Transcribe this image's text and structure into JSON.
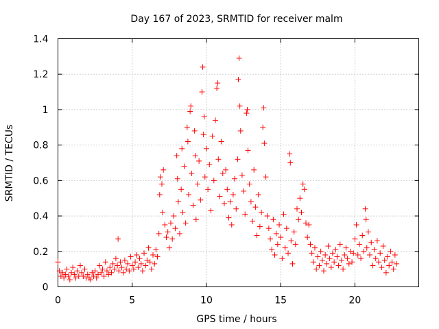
{
  "chart_data": {
    "type": "scatter",
    "title": "Day 167 of 2023, SRMTID for receiver malm",
    "xlabel": "GPS time / hours",
    "ylabel": "SRMTID / TECUs",
    "xlim": [
      0,
      24.3
    ],
    "ylim": [
      0,
      1.4
    ],
    "xticks": [
      0,
      5,
      10,
      15,
      20
    ],
    "xtick_labels": [
      "0",
      "5",
      "10",
      "15",
      "20"
    ],
    "yticks": [
      0,
      0.2,
      0.4,
      0.6,
      0.8,
      1.0,
      1.2,
      1.4
    ],
    "ytick_labels": [
      "0",
      "0.2",
      "0.4",
      "0.6",
      "0.8",
      "1",
      "1.2",
      "1.4"
    ],
    "grid": true,
    "marker": "plus",
    "color": "#ff0000",
    "series": [
      {
        "name": "SRMTID",
        "points": [
          [
            0.0,
            0.14
          ],
          [
            0.1,
            0.09
          ],
          [
            0.2,
            0.06
          ],
          [
            0.3,
            0.08
          ],
          [
            0.4,
            0.05
          ],
          [
            0.5,
            0.07
          ],
          [
            0.6,
            0.1
          ],
          [
            0.7,
            0.06
          ],
          [
            0.8,
            0.04
          ],
          [
            0.9,
            0.08
          ],
          [
            1.0,
            0.11
          ],
          [
            1.1,
            0.07
          ],
          [
            1.2,
            0.05
          ],
          [
            1.3,
            0.09
          ],
          [
            1.4,
            0.06
          ],
          [
            1.5,
            0.12
          ],
          [
            1.6,
            0.08
          ],
          [
            1.7,
            0.06
          ],
          [
            1.8,
            0.1
          ],
          [
            1.9,
            0.05
          ],
          [
            2.0,
            0.07
          ],
          [
            2.1,
            0.05
          ],
          [
            2.2,
            0.04
          ],
          [
            2.3,
            0.08
          ],
          [
            2.4,
            0.06
          ],
          [
            2.5,
            0.09
          ],
          [
            2.6,
            0.05
          ],
          [
            2.7,
            0.07
          ],
          [
            2.8,
            0.12
          ],
          [
            2.9,
            0.08
          ],
          [
            3.0,
            0.1
          ],
          [
            3.1,
            0.06
          ],
          [
            3.2,
            0.14
          ],
          [
            3.3,
            0.09
          ],
          [
            3.4,
            0.07
          ],
          [
            3.5,
            0.11
          ],
          [
            3.6,
            0.08
          ],
          [
            3.7,
            0.13
          ],
          [
            3.8,
            0.1
          ],
          [
            3.9,
            0.16
          ],
          [
            4.0,
            0.12
          ],
          [
            4.05,
            0.27
          ],
          [
            4.1,
            0.09
          ],
          [
            4.2,
            0.14
          ],
          [
            4.3,
            0.11
          ],
          [
            4.4,
            0.08
          ],
          [
            4.5,
            0.15
          ],
          [
            4.6,
            0.1
          ],
          [
            4.7,
            0.13
          ],
          [
            4.8,
            0.09
          ],
          [
            4.9,
            0.17
          ],
          [
            5.0,
            0.12
          ],
          [
            5.1,
            0.1
          ],
          [
            5.2,
            0.14
          ],
          [
            5.3,
            0.18
          ],
          [
            5.4,
            0.11
          ],
          [
            5.5,
            0.16
          ],
          [
            5.6,
            0.13
          ],
          [
            5.7,
            0.09
          ],
          [
            5.8,
            0.19
          ],
          [
            5.9,
            0.12
          ],
          [
            6.0,
            0.15
          ],
          [
            6.1,
            0.22
          ],
          [
            6.2,
            0.14
          ],
          [
            6.3,
            0.1
          ],
          [
            6.4,
            0.18
          ],
          [
            6.5,
            0.13
          ],
          [
            6.6,
            0.21
          ],
          [
            6.7,
            0.17
          ],
          [
            6.8,
            0.3
          ],
          [
            6.85,
            0.52
          ],
          [
            6.9,
            0.62
          ],
          [
            7.0,
            0.58
          ],
          [
            7.05,
            0.42
          ],
          [
            7.1,
            0.66
          ],
          [
            7.2,
            0.35
          ],
          [
            7.3,
            0.28
          ],
          [
            7.4,
            0.31
          ],
          [
            7.5,
            0.22
          ],
          [
            7.6,
            0.36
          ],
          [
            7.7,
            0.27
          ],
          [
            7.8,
            0.4
          ],
          [
            7.9,
            0.33
          ],
          [
            8.0,
            0.74
          ],
          [
            8.05,
            0.61
          ],
          [
            8.1,
            0.48
          ],
          [
            8.2,
            0.3
          ],
          [
            8.3,
            0.55
          ],
          [
            8.35,
            0.78
          ],
          [
            8.4,
            0.42
          ],
          [
            8.5,
            0.68
          ],
          [
            8.6,
            0.36
          ],
          [
            8.7,
            0.9
          ],
          [
            8.75,
            0.82
          ],
          [
            8.8,
            0.52
          ],
          [
            8.9,
            0.99
          ],
          [
            8.95,
            1.02
          ],
          [
            9.0,
            0.64
          ],
          [
            9.1,
            0.46
          ],
          [
            9.2,
            0.88
          ],
          [
            9.25,
            0.74
          ],
          [
            9.3,
            0.38
          ],
          [
            9.4,
            0.58
          ],
          [
            9.5,
            0.71
          ],
          [
            9.6,
            0.49
          ],
          [
            9.7,
            1.1
          ],
          [
            9.75,
            1.24
          ],
          [
            9.8,
            0.86
          ],
          [
            9.85,
            0.96
          ],
          [
            9.9,
            0.62
          ],
          [
            10.0,
            0.78
          ],
          [
            10.1,
            0.55
          ],
          [
            10.2,
            0.69
          ],
          [
            10.3,
            0.43
          ],
          [
            10.4,
            0.85
          ],
          [
            10.5,
            0.6
          ],
          [
            10.6,
            0.94
          ],
          [
            10.7,
            1.12
          ],
          [
            10.75,
            1.15
          ],
          [
            10.8,
            0.72
          ],
          [
            10.9,
            0.51
          ],
          [
            11.0,
            0.82
          ],
          [
            11.1,
            0.64
          ],
          [
            11.2,
            0.47
          ],
          [
            11.3,
            0.66
          ],
          [
            11.4,
            0.55
          ],
          [
            11.5,
            0.39
          ],
          [
            11.6,
            0.48
          ],
          [
            11.7,
            0.35
          ],
          [
            11.8,
            0.52
          ],
          [
            11.9,
            0.61
          ],
          [
            12.0,
            0.44
          ],
          [
            12.1,
            0.72
          ],
          [
            12.15,
            1.17
          ],
          [
            12.2,
            1.29
          ],
          [
            12.25,
            1.02
          ],
          [
            12.3,
            0.88
          ],
          [
            12.4,
            0.63
          ],
          [
            12.5,
            0.54
          ],
          [
            12.6,
            0.41
          ],
          [
            12.7,
            0.98
          ],
          [
            12.75,
            1.0
          ],
          [
            12.8,
            0.77
          ],
          [
            12.9,
            0.58
          ],
          [
            13.0,
            0.48
          ],
          [
            13.1,
            0.37
          ],
          [
            13.2,
            0.66
          ],
          [
            13.3,
            0.45
          ],
          [
            13.4,
            0.29
          ],
          [
            13.5,
            0.52
          ],
          [
            13.6,
            0.34
          ],
          [
            13.7,
            0.42
          ],
          [
            13.8,
            0.9
          ],
          [
            13.85,
            1.01
          ],
          [
            13.9,
            0.81
          ],
          [
            14.0,
            0.62
          ],
          [
            14.1,
            0.4
          ],
          [
            14.2,
            0.33
          ],
          [
            14.3,
            0.27
          ],
          [
            14.4,
            0.21
          ],
          [
            14.5,
            0.38
          ],
          [
            14.6,
            0.18
          ],
          [
            14.7,
            0.3
          ],
          [
            14.8,
            0.24
          ],
          [
            14.9,
            0.35
          ],
          [
            15.0,
            0.28
          ],
          [
            15.1,
            0.16
          ],
          [
            15.2,
            0.41
          ],
          [
            15.3,
            0.22
          ],
          [
            15.4,
            0.33
          ],
          [
            15.5,
            0.19
          ],
          [
            15.6,
            0.75
          ],
          [
            15.65,
            0.7
          ],
          [
            15.7,
            0.26
          ],
          [
            15.8,
            0.13
          ],
          [
            15.9,
            0.31
          ],
          [
            16.0,
            0.24
          ],
          [
            16.1,
            0.44
          ],
          [
            16.2,
            0.38
          ],
          [
            16.3,
            0.5
          ],
          [
            16.4,
            0.42
          ],
          [
            16.5,
            0.58
          ],
          [
            16.6,
            0.55
          ],
          [
            16.7,
            0.36
          ],
          [
            16.8,
            0.28
          ],
          [
            16.9,
            0.35
          ],
          [
            17.0,
            0.24
          ],
          [
            17.1,
            0.19
          ],
          [
            17.2,
            0.14
          ],
          [
            17.3,
            0.22
          ],
          [
            17.4,
            0.1
          ],
          [
            17.5,
            0.17
          ],
          [
            17.6,
            0.12
          ],
          [
            17.7,
            0.2
          ],
          [
            17.8,
            0.15
          ],
          [
            17.9,
            0.09
          ],
          [
            18.0,
            0.18
          ],
          [
            18.1,
            0.13
          ],
          [
            18.2,
            0.23
          ],
          [
            18.3,
            0.16
          ],
          [
            18.4,
            0.11
          ],
          [
            18.5,
            0.19
          ],
          [
            18.6,
            0.14
          ],
          [
            18.7,
            0.21
          ],
          [
            18.8,
            0.17
          ],
          [
            18.9,
            0.12
          ],
          [
            19.0,
            0.24
          ],
          [
            19.1,
            0.15
          ],
          [
            19.2,
            0.1
          ],
          [
            19.3,
            0.18
          ],
          [
            19.4,
            0.22
          ],
          [
            19.5,
            0.16
          ],
          [
            19.6,
            0.13
          ],
          [
            19.7,
            0.2
          ],
          [
            19.8,
            0.14
          ],
          [
            19.9,
            0.19
          ],
          [
            20.0,
            0.27
          ],
          [
            20.1,
            0.35
          ],
          [
            20.2,
            0.18
          ],
          [
            20.3,
            0.24
          ],
          [
            20.4,
            0.16
          ],
          [
            20.5,
            0.29
          ],
          [
            20.6,
            0.2
          ],
          [
            20.7,
            0.44
          ],
          [
            20.75,
            0.38
          ],
          [
            20.8,
            0.22
          ],
          [
            20.9,
            0.31
          ],
          [
            21.0,
            0.18
          ],
          [
            21.1,
            0.25
          ],
          [
            21.2,
            0.12
          ],
          [
            21.3,
            0.21
          ],
          [
            21.4,
            0.16
          ],
          [
            21.5,
            0.26
          ],
          [
            21.6,
            0.14
          ],
          [
            21.7,
            0.19
          ],
          [
            21.8,
            0.11
          ],
          [
            21.9,
            0.23
          ],
          [
            22.0,
            0.15
          ],
          [
            22.1,
            0.08
          ],
          [
            22.2,
            0.17
          ],
          [
            22.3,
            0.12
          ],
          [
            22.4,
            0.2
          ],
          [
            22.5,
            0.14
          ],
          [
            22.6,
            0.1
          ],
          [
            22.7,
            0.18
          ],
          [
            22.8,
            0.13
          ]
        ]
      }
    ]
  }
}
